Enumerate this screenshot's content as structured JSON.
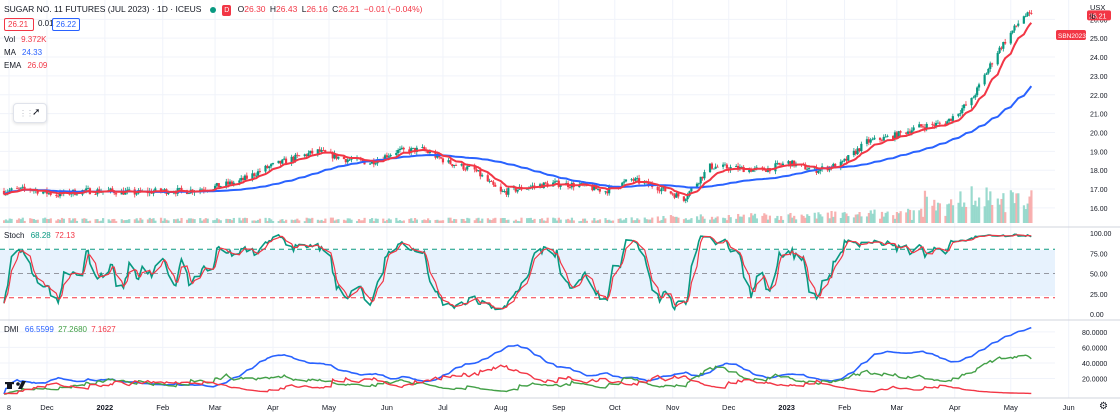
{
  "header": {
    "title": "SUGAR NO. 11 FUTURES (JUL 2023) · 1D · ICEUS",
    "interval_badge": "D",
    "open_label": "O",
    "open": "26.30",
    "high_label": "H",
    "high": "26.43",
    "low_label": "L",
    "low": "26.16",
    "close_label": "C",
    "close": "26.21",
    "change": "−0.01 (−0.04%)"
  },
  "quote": {
    "bid": "26.21",
    "spread": "0.01",
    "ask": "26.22"
  },
  "legend": {
    "vol_label": "Vol",
    "vol_value": "9.372K",
    "ma_label": "MA",
    "ma_value": "24.33",
    "ema_label": "EMA",
    "ema_value": "26.09"
  },
  "stoch_legend": {
    "label": "Stoch",
    "k": "68.28",
    "d": "72.13"
  },
  "dmi_legend": {
    "label": "DMI",
    "adx": "66.5599",
    "plus_di": "27.2680",
    "minus_di": "7.1627"
  },
  "currency": {
    "line1": "USX",
    "line2": "lb"
  },
  "symbol_tag": "SBN2023",
  "last_price": "26.21",
  "colors": {
    "up": "#089981",
    "down": "#f23645",
    "ma": "#2962ff",
    "ema": "#f23645",
    "stoch_k": "#089981",
    "stoch_d": "#f23645",
    "adx": "#2962ff",
    "plus_di": "#43a047",
    "minus_di": "#f23645"
  },
  "icons": [
    "drag-handle-icon",
    "cursor-arrow-icon",
    "settings-gear-icon",
    "tradingview-logo-icon"
  ],
  "chart_data": [
    {
      "type": "candlestick",
      "title": "SUGAR NO. 11 FUTURES (JUL 2023)",
      "xlabel": "",
      "ylabel": "",
      "x_ticks": [
        "8",
        "Dec",
        "2022",
        "Feb",
        "Mar",
        "Apr",
        "May",
        "Jun",
        "Jul",
        "Aug",
        "Sep",
        "Oct",
        "Nov",
        "Dec",
        "2023",
        "Feb",
        "Mar",
        "Apr",
        "May",
        "Jun"
      ],
      "y_ticks": [
        "16.00",
        "17.00",
        "18.00",
        "19.00",
        "20.00",
        "21.00",
        "22.00",
        "23.00",
        "24.00",
        "25.00",
        "26.00"
      ],
      "ylim": [
        15.2,
        26.6
      ],
      "close_series_weekly": {
        "x": [
          "2021-11-08",
          "2021-11-22",
          "2021-12-06",
          "2021-12-20",
          "2022-01-03",
          "2022-01-17",
          "2022-01-31",
          "2022-02-14",
          "2022-02-28",
          "2022-03-14",
          "2022-03-28",
          "2022-04-11",
          "2022-04-25",
          "2022-05-09",
          "2022-05-23",
          "2022-06-06",
          "2022-06-20",
          "2022-07-04",
          "2022-07-18",
          "2022-08-01",
          "2022-08-15",
          "2022-08-29",
          "2022-09-12",
          "2022-09-26",
          "2022-10-10",
          "2022-10-24",
          "2022-11-07",
          "2022-11-21",
          "2022-12-05",
          "2022-12-19",
          "2023-01-02",
          "2023-01-16",
          "2023-01-30",
          "2023-02-13",
          "2023-02-27",
          "2023-03-13",
          "2023-03-27",
          "2023-04-10",
          "2023-04-24",
          "2023-05-08"
        ],
        "close": [
          16.9,
          17.0,
          16.7,
          16.9,
          16.9,
          16.8,
          16.9,
          16.9,
          17.1,
          17.4,
          18.1,
          18.6,
          19.0,
          18.6,
          18.4,
          19.0,
          19.1,
          18.4,
          18.0,
          16.8,
          17.1,
          17.3,
          17.2,
          16.9,
          17.5,
          17.1,
          16.5,
          18.2,
          18.1,
          18.0,
          18.4,
          18.0,
          18.3,
          19.5,
          19.8,
          20.3,
          20.5,
          21.7,
          24.3,
          26.2
        ]
      },
      "series": [
        {
          "name": "MA",
          "value": 24.33
        },
        {
          "name": "EMA",
          "value": 26.09
        },
        {
          "name": "Vol",
          "value": "9.372K"
        }
      ]
    },
    {
      "type": "line",
      "title": "Stoch",
      "y_ticks": [
        "0.00",
        "25.00",
        "50.00",
        "75.00",
        "100.00"
      ],
      "ylim": [
        0,
        100
      ],
      "bands": {
        "upper": 80,
        "middle": 50,
        "lower": 20
      },
      "series": [
        {
          "name": "%K",
          "last": 68.28
        },
        {
          "name": "%D",
          "last": 72.13
        }
      ]
    },
    {
      "type": "line",
      "title": "DMI",
      "y_ticks": [
        "20.0000",
        "40.0000",
        "60.0000",
        "80.0000"
      ],
      "ylim": [
        0,
        85
      ],
      "series": [
        {
          "name": "ADX",
          "last": 66.5599
        },
        {
          "name": "+DI",
          "last": 27.268
        },
        {
          "name": "-DI",
          "last": 7.1627
        }
      ]
    }
  ]
}
